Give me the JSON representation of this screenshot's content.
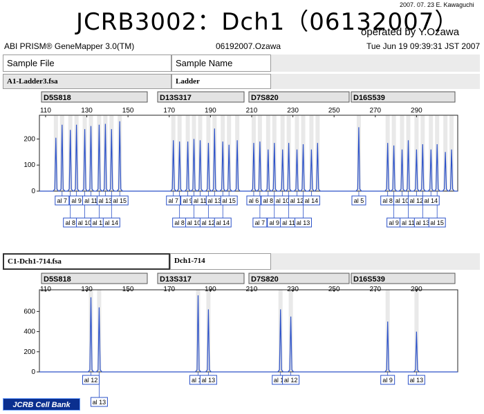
{
  "header": {
    "title": "JCRB3002：Dch1（06132007）",
    "stamp": "2007. 07. 23  E. Kawaguchi",
    "operator": "operated by Y.Ozawa",
    "software": "ABI PRISM® GeneMapper 3.0(TM)",
    "project": "06192007.Ozawa",
    "datetime": "Tue Jun 19 09:39:31 JST 2007"
  },
  "columns": {
    "sample_file": "Sample File",
    "sample_name": "Sample Name"
  },
  "panels": [
    {
      "sample_file": "A1-Ladder3.fsa",
      "sample_name": "Ladder",
      "ticks": [
        "110",
        "130",
        "150",
        "170",
        "190",
        "210",
        "230",
        "250",
        "270",
        "290"
      ],
      "y_ticks": [
        "200",
        "100",
        "0"
      ],
      "ylim": [
        0,
        270
      ],
      "markers": [
        "D5S818",
        "D13S317",
        "D7S820",
        "D16S539"
      ],
      "peaks": [
        [
          115,
          205
        ],
        [
          118,
          255
        ],
        [
          122,
          235
        ],
        [
          125,
          255
        ],
        [
          129,
          238
        ],
        [
          132,
          250
        ],
        [
          136,
          255
        ],
        [
          139,
          258
        ],
        [
          142,
          238
        ],
        [
          146,
          268
        ],
        [
          172,
          195
        ],
        [
          175,
          190
        ],
        [
          179,
          190
        ],
        [
          182,
          200
        ],
        [
          185,
          195
        ],
        [
          189,
          185
        ],
        [
          192,
          240
        ],
        [
          196,
          190
        ],
        [
          199,
          178
        ],
        [
          203,
          195
        ],
        [
          211,
          185
        ],
        [
          214,
          190
        ],
        [
          218,
          160
        ],
        [
          221,
          185
        ],
        [
          225,
          160
        ],
        [
          228,
          185
        ],
        [
          232,
          160
        ],
        [
          235,
          180
        ],
        [
          239,
          160
        ],
        [
          242,
          185
        ],
        [
          262,
          245
        ],
        [
          276,
          185
        ],
        [
          279,
          175
        ],
        [
          283,
          160
        ],
        [
          286,
          195
        ],
        [
          290,
          160
        ],
        [
          293,
          180
        ],
        [
          297,
          160
        ],
        [
          300,
          180
        ],
        [
          304,
          150
        ],
        [
          307,
          160
        ]
      ],
      "alleles_top": [
        {
          "label": "al 7",
          "x": 118
        },
        {
          "label": "al 9",
          "x": 125
        },
        {
          "label": "al 11",
          "x": 132
        },
        {
          "label": "al 13",
          "x": 139
        },
        {
          "label": "al 15",
          "x": 146
        },
        {
          "label": "al 7",
          "x": 172
        },
        {
          "label": "al 9",
          "x": 179
        },
        {
          "label": "al 11",
          "x": 185
        },
        {
          "label": "al 13",
          "x": 192
        },
        {
          "label": "al 15",
          "x": 199
        },
        {
          "label": "al 6",
          "x": 211
        },
        {
          "label": "al 8",
          "x": 218
        },
        {
          "label": "al 10",
          "x": 225
        },
        {
          "label": "al 12",
          "x": 232
        },
        {
          "label": "al 14",
          "x": 239
        },
        {
          "label": "al 5",
          "x": 262
        },
        {
          "label": "al 8",
          "x": 276
        },
        {
          "label": "al 10",
          "x": 283
        },
        {
          "label": "al 12",
          "x": 290
        },
        {
          "label": "al 14",
          "x": 297
        }
      ],
      "alleles_bottom": [
        {
          "label": "al 8",
          "x": 122
        },
        {
          "label": "al 10",
          "x": 129
        },
        {
          "label": "al 12",
          "x": 136
        },
        {
          "label": "al 14",
          "x": 142
        },
        {
          "label": "al 8",
          "x": 175
        },
        {
          "label": "al 10",
          "x": 182
        },
        {
          "label": "al 12",
          "x": 189
        },
        {
          "label": "al 14",
          "x": 196
        },
        {
          "label": "al 7",
          "x": 214
        },
        {
          "label": "al 9",
          "x": 221
        },
        {
          "label": "al 11",
          "x": 228
        },
        {
          "label": "al 13",
          "x": 235
        },
        {
          "label": "al 9",
          "x": 279
        },
        {
          "label": "al 11",
          "x": 286
        },
        {
          "label": "al 13",
          "x": 293
        },
        {
          "label": "al 15",
          "x": 300
        }
      ]
    },
    {
      "sample_file": "C1-Dch1-714.fsa",
      "sample_name": "Dch1-714",
      "ticks": [
        "110",
        "130",
        "150",
        "170",
        "190",
        "210",
        "230",
        "250",
        "270",
        "290"
      ],
      "y_ticks": [
        "600",
        "400",
        "200",
        "0"
      ],
      "ylim": [
        0,
        760
      ],
      "markers": [
        "D5S818",
        "D13S317",
        "D7S820",
        "D16S539"
      ],
      "peaks": [
        [
          132,
          740
        ],
        [
          136,
          640
        ],
        [
          184,
          760
        ],
        [
          189,
          620
        ],
        [
          224,
          620
        ],
        [
          229,
          550
        ],
        [
          276,
          500
        ],
        [
          290,
          400
        ]
      ],
      "alleles_top": [
        {
          "label": "al 12",
          "x": 132
        },
        {
          "label": "al 11",
          "x": 184
        },
        {
          "label": "al 13",
          "x": 189
        },
        {
          "label": "al 10",
          "x": 224
        },
        {
          "label": "al 12",
          "x": 229
        },
        {
          "label": "al 9",
          "x": 276
        },
        {
          "label": "al 13",
          "x": 290
        }
      ],
      "alleles_bottom": [
        {
          "label": "al 13",
          "x": 136
        }
      ]
    }
  ],
  "footer": {
    "logo": "JCRB Cell Bank"
  }
}
